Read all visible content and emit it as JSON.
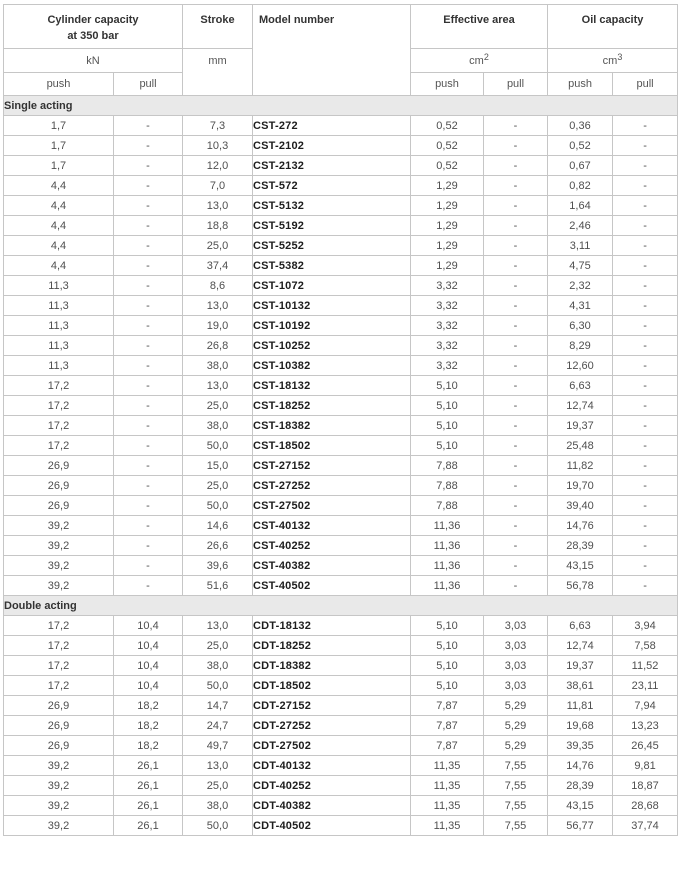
{
  "header": {
    "capacity_line1": "Cylinder capacity",
    "capacity_line2": "at 350 bar",
    "capacity_unit": "kN",
    "stroke_label": "Stroke",
    "stroke_unit": "mm",
    "model_label": "Model number",
    "effective_area_label": "Effective area",
    "effective_area_unit_base": "cm",
    "effective_area_unit_sup": "2",
    "oil_capacity_label": "Oil capacity",
    "oil_capacity_unit_base": "cm",
    "oil_capacity_unit_sup": "3",
    "push_label": "push",
    "pull_label": "pull"
  },
  "columns": [
    "capacity_push_kn",
    "capacity_pull_kn",
    "stroke_mm",
    "model_number",
    "effective_area_push_cm2",
    "effective_area_pull_cm2",
    "oil_capacity_push_cm3",
    "oil_capacity_pull_cm3"
  ],
  "sections": [
    {
      "title": "Single acting",
      "rows": [
        [
          "1,7",
          "-",
          "7,3",
          "CST-272",
          "0,52",
          "-",
          "0,36",
          "-"
        ],
        [
          "1,7",
          "-",
          "10,3",
          "CST-2102",
          "0,52",
          "-",
          "0,52",
          "-"
        ],
        [
          "1,7",
          "-",
          "12,0",
          "CST-2132",
          "0,52",
          "-",
          "0,67",
          "-"
        ],
        [
          "4,4",
          "-",
          "7,0",
          "CST-572",
          "1,29",
          "-",
          "0,82",
          "-"
        ],
        [
          "4,4",
          "-",
          "13,0",
          "CST-5132",
          "1,29",
          "-",
          "1,64",
          "-"
        ],
        [
          "4,4",
          "-",
          "18,8",
          "CST-5192",
          "1,29",
          "-",
          "2,46",
          "-"
        ],
        [
          "4,4",
          "-",
          "25,0",
          "CST-5252",
          "1,29",
          "-",
          "3,11",
          "-"
        ],
        [
          "4,4",
          "-",
          "37,4",
          "CST-5382",
          "1,29",
          "-",
          "4,75",
          "-"
        ],
        [
          "11,3",
          "-",
          "8,6",
          "CST-1072",
          "3,32",
          "-",
          "2,32",
          "-"
        ],
        [
          "11,3",
          "-",
          "13,0",
          "CST-10132",
          "3,32",
          "-",
          "4,31",
          "-"
        ],
        [
          "11,3",
          "-",
          "19,0",
          "CST-10192",
          "3,32",
          "-",
          "6,30",
          "-"
        ],
        [
          "11,3",
          "-",
          "26,8",
          "CST-10252",
          "3,32",
          "-",
          "8,29",
          "-"
        ],
        [
          "11,3",
          "-",
          "38,0",
          "CST-10382",
          "3,32",
          "-",
          "12,60",
          "-"
        ],
        [
          "17,2",
          "-",
          "13,0",
          "CST-18132",
          "5,10",
          "-",
          "6,63",
          "-"
        ],
        [
          "17,2",
          "-",
          "25,0",
          "CST-18252",
          "5,10",
          "-",
          "12,74",
          "-"
        ],
        [
          "17,2",
          "-",
          "38,0",
          "CST-18382",
          "5,10",
          "-",
          "19,37",
          "-"
        ],
        [
          "17,2",
          "-",
          "50,0",
          "CST-18502",
          "5,10",
          "-",
          "25,48",
          "-"
        ],
        [
          "26,9",
          "-",
          "15,0",
          "CST-27152",
          "7,88",
          "-",
          "11,82",
          "-"
        ],
        [
          "26,9",
          "-",
          "25,0",
          "CST-27252",
          "7,88",
          "-",
          "19,70",
          "-"
        ],
        [
          "26,9",
          "-",
          "50,0",
          "CST-27502",
          "7,88",
          "-",
          "39,40",
          "-"
        ],
        [
          "39,2",
          "-",
          "14,6",
          "CST-40132",
          "11,36",
          "-",
          "14,76",
          "-"
        ],
        [
          "39,2",
          "-",
          "26,6",
          "CST-40252",
          "11,36",
          "-",
          "28,39",
          "-"
        ],
        [
          "39,2",
          "-",
          "39,6",
          "CST-40382",
          "11,36",
          "-",
          "43,15",
          "-"
        ],
        [
          "39,2",
          "-",
          "51,6",
          "CST-40502",
          "11,36",
          "-",
          "56,78",
          "-"
        ]
      ]
    },
    {
      "title": "Double acting",
      "rows": [
        [
          "17,2",
          "10,4",
          "13,0",
          "CDT-18132",
          "5,10",
          "3,03",
          "6,63",
          "3,94"
        ],
        [
          "17,2",
          "10,4",
          "25,0",
          "CDT-18252",
          "5,10",
          "3,03",
          "12,74",
          "7,58"
        ],
        [
          "17,2",
          "10,4",
          "38,0",
          "CDT-18382",
          "5,10",
          "3,03",
          "19,37",
          "11,52"
        ],
        [
          "17,2",
          "10,4",
          "50,0",
          "CDT-18502",
          "5,10",
          "3,03",
          "38,61",
          "23,11"
        ],
        [
          "26,9",
          "18,2",
          "14,7",
          "CDT-27152",
          "7,87",
          "5,29",
          "11,81",
          "7,94"
        ],
        [
          "26,9",
          "18,2",
          "24,7",
          "CDT-27252",
          "7,87",
          "5,29",
          "19,68",
          "13,23"
        ],
        [
          "26,9",
          "18,2",
          "49,7",
          "CDT-27502",
          "7,87",
          "5,29",
          "39,35",
          "26,45"
        ],
        [
          "39,2",
          "26,1",
          "13,0",
          "CDT-40132",
          "11,35",
          "7,55",
          "14,76",
          "9,81"
        ],
        [
          "39,2",
          "26,1",
          "25,0",
          "CDT-40252",
          "11,35",
          "7,55",
          "28,39",
          "18,87"
        ],
        [
          "39,2",
          "26,1",
          "38,0",
          "CDT-40382",
          "11,35",
          "7,55",
          "43,15",
          "28,68"
        ],
        [
          "39,2",
          "26,1",
          "50,0",
          "CDT-40502",
          "11,35",
          "7,55",
          "56,77",
          "37,74"
        ]
      ]
    }
  ],
  "colors": {
    "border": "#c6c6c6",
    "section_row_bg": "#e9e9e9",
    "header_text": "#333333",
    "unit_text": "#555555",
    "cell_text": "#4f4f4f",
    "model_text": "#1d1d1d",
    "background": "#ffffff"
  }
}
